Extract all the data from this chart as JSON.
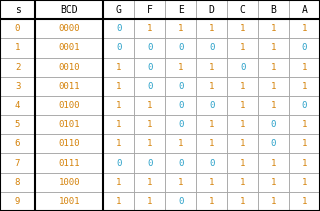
{
  "headers": [
    "s",
    "BCD",
    "G",
    "F",
    "E",
    "D",
    "C",
    "B",
    "A"
  ],
  "rows": [
    [
      "0",
      "0000",
      "0",
      "1",
      "1",
      "1",
      "1",
      "1",
      "1"
    ],
    [
      "1",
      "0001",
      "0",
      "0",
      "0",
      "0",
      "1",
      "1",
      "0"
    ],
    [
      "2",
      "0010",
      "1",
      "0",
      "1",
      "1",
      "0",
      "1",
      "1"
    ],
    [
      "3",
      "0011",
      "1",
      "0",
      "0",
      "1",
      "1",
      "1",
      "1"
    ],
    [
      "4",
      "0100",
      "1",
      "1",
      "0",
      "0",
      "1",
      "1",
      "0"
    ],
    [
      "5",
      "0101",
      "1",
      "1",
      "0",
      "1",
      "1",
      "0",
      "1"
    ],
    [
      "6",
      "0110",
      "1",
      "1",
      "1",
      "1",
      "1",
      "0",
      "1"
    ],
    [
      "7",
      "0111",
      "0",
      "0",
      "0",
      "0",
      "1",
      "1",
      "1"
    ],
    [
      "8",
      "1000",
      "1",
      "1",
      "1",
      "1",
      "1",
      "1",
      "1"
    ],
    [
      "9",
      "1001",
      "1",
      "1",
      "0",
      "1",
      "1",
      "1",
      "1"
    ]
  ],
  "header_text_color": "#000000",
  "orange_color": "#d4820a",
  "blue_color": "#29a0c8",
  "bg_color": "#ffffff",
  "grid_color": "#999999",
  "thick_color": "#000000",
  "font_size": 6.5,
  "header_font_size": 7.0,
  "col_widths": [
    0.85,
    1.65,
    0.75,
    0.75,
    0.75,
    0.75,
    0.75,
    0.75,
    0.75
  ]
}
